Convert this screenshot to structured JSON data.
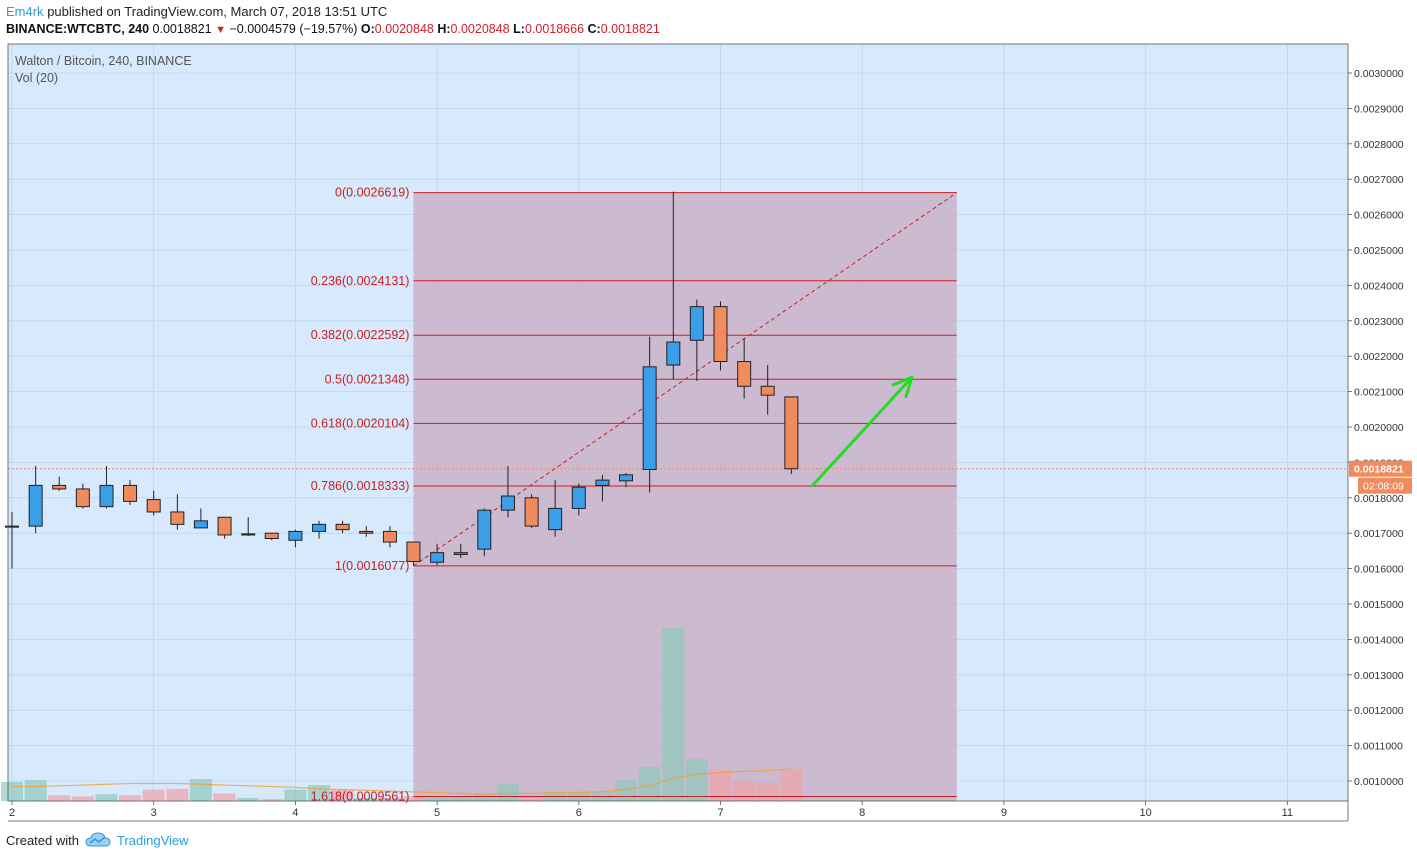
{
  "header": {
    "author": "Em4rk",
    "published_text": "published on TradingView.com, March 07, 2018 13:51 UTC",
    "symbol": "BINANCE:WTCBTC, 240",
    "last": "0.0018821",
    "change": "−0.0004579 (−19.57%)",
    "o_label": "O:",
    "o_val": "0.0020848",
    "h_label": "H:",
    "h_val": "0.0020848",
    "l_label": "L:",
    "l_val": "0.0018666",
    "c_label": "C:",
    "c_val": "0.0018821"
  },
  "legend": {
    "title": "Walton / Bitcoin, 240, BINANCE",
    "vol": "Vol (20)"
  },
  "footer": {
    "created_with": "Created with",
    "brand": "TradingView"
  },
  "colors": {
    "bg": "#d6e9fd",
    "up": "#3a9ee8",
    "down": "#ef8b5c",
    "fib_line": "#cc1f1f",
    "fib_zone": "#c8aac0",
    "arrow": "#22dd22",
    "price_tag": "#ef8b5c"
  },
  "chart_data": {
    "type": "candlestick",
    "price_range": [
      0.00091,
      0.00312
    ],
    "y_ticks": [
      "0.0030000",
      "0.0029000",
      "0.0028000",
      "0.0027000",
      "0.0026000",
      "0.0025000",
      "0.0024000",
      "0.0023000",
      "0.0022000",
      "0.0021000",
      "0.0020000",
      "0.0019000",
      "0.0018000",
      "0.0017000",
      "0.0016000",
      "0.0015000",
      "0.0014000",
      "0.0013000",
      "0.0012000",
      "0.0011000",
      "0.0010000"
    ],
    "x_ticks": [
      "2",
      "3",
      "4",
      "5",
      "6",
      "7",
      "8",
      "9",
      "10",
      "11"
    ],
    "x_tick_values": [
      2,
      3,
      4,
      5,
      6,
      7,
      8,
      9,
      10,
      11
    ],
    "x_range": [
      1.97,
      11.45
    ],
    "candles": [
      {
        "t": 2.0,
        "o": 0.00172,
        "h": 0.00176,
        "l": 0.0016,
        "c": 0.00172
      },
      {
        "t": 2.167,
        "o": 0.00172,
        "h": 0.00189,
        "l": 0.0017,
        "c": 0.001835
      },
      {
        "t": 2.333,
        "o": 0.001835,
        "h": 0.00186,
        "l": 0.00182,
        "c": 0.001825
      },
      {
        "t": 2.5,
        "o": 0.001825,
        "h": 0.00184,
        "l": 0.00177,
        "c": 0.001775
      },
      {
        "t": 2.667,
        "o": 0.001775,
        "h": 0.00189,
        "l": 0.00177,
        "c": 0.001835
      },
      {
        "t": 2.833,
        "o": 0.001835,
        "h": 0.00185,
        "l": 0.00178,
        "c": 0.00179
      },
      {
        "t": 3.0,
        "o": 0.001795,
        "h": 0.00182,
        "l": 0.00175,
        "c": 0.00176
      },
      {
        "t": 3.167,
        "o": 0.00176,
        "h": 0.00181,
        "l": 0.00171,
        "c": 0.001725
      },
      {
        "t": 3.333,
        "o": 0.001715,
        "h": 0.00177,
        "l": 0.001715,
        "c": 0.001735
      },
      {
        "t": 3.5,
        "o": 0.001745,
        "h": 0.001745,
        "l": 0.001685,
        "c": 0.001695
      },
      {
        "t": 3.667,
        "o": 0.001698,
        "h": 0.001745,
        "l": 0.001692,
        "c": 0.001695
      },
      {
        "t": 3.833,
        "o": 0.0017,
        "h": 0.0017,
        "l": 0.00168,
        "c": 0.001685
      },
      {
        "t": 4.0,
        "o": 0.00168,
        "h": 0.00171,
        "l": 0.00166,
        "c": 0.001705
      },
      {
        "t": 4.167,
        "o": 0.001705,
        "h": 0.001735,
        "l": 0.001685,
        "c": 0.001725
      },
      {
        "t": 4.333,
        "o": 0.001725,
        "h": 0.001735,
        "l": 0.0017,
        "c": 0.00171
      },
      {
        "t": 4.5,
        "o": 0.001705,
        "h": 0.00172,
        "l": 0.00169,
        "c": 0.0017
      },
      {
        "t": 4.667,
        "o": 0.001705,
        "h": 0.00172,
        "l": 0.00166,
        "c": 0.001675
      },
      {
        "t": 4.833,
        "o": 0.001675,
        "h": 0.001675,
        "l": 0.001608,
        "c": 0.00162
      },
      {
        "t": 5.0,
        "o": 0.001618,
        "h": 0.00167,
        "l": 0.00161,
        "c": 0.001645
      },
      {
        "t": 5.167,
        "o": 0.00164,
        "h": 0.00167,
        "l": 0.00163,
        "c": 0.001645
      },
      {
        "t": 5.333,
        "o": 0.001655,
        "h": 0.00177,
        "l": 0.001635,
        "c": 0.001765
      },
      {
        "t": 5.5,
        "o": 0.001765,
        "h": 0.00189,
        "l": 0.001745,
        "c": 0.001805
      },
      {
        "t": 5.667,
        "o": 0.0018,
        "h": 0.00181,
        "l": 0.001715,
        "c": 0.00172
      },
      {
        "t": 5.833,
        "o": 0.00171,
        "h": 0.00185,
        "l": 0.00169,
        "c": 0.00177
      },
      {
        "t": 6.0,
        "o": 0.00177,
        "h": 0.00184,
        "l": 0.00175,
        "c": 0.00183
      },
      {
        "t": 6.167,
        "o": 0.001835,
        "h": 0.001865,
        "l": 0.00179,
        "c": 0.00185
      },
      {
        "t": 6.333,
        "o": 0.001848,
        "h": 0.00187,
        "l": 0.00183,
        "c": 0.001865
      },
      {
        "t": 6.5,
        "o": 0.00188,
        "h": 0.002255,
        "l": 0.001815,
        "c": 0.00217
      },
      {
        "t": 6.667,
        "o": 0.002175,
        "h": 0.002665,
        "l": 0.002135,
        "c": 0.00224
      },
      {
        "t": 6.833,
        "o": 0.002245,
        "h": 0.00236,
        "l": 0.00213,
        "c": 0.00234
      },
      {
        "t": 7.0,
        "o": 0.00234,
        "h": 0.002355,
        "l": 0.00216,
        "c": 0.002185
      },
      {
        "t": 7.167,
        "o": 0.002185,
        "h": 0.00225,
        "l": 0.00208,
        "c": 0.002115
      },
      {
        "t": 7.333,
        "o": 0.002115,
        "h": 0.002175,
        "l": 0.002035,
        "c": 0.00209
      },
      {
        "t": 7.5,
        "o": 0.002085,
        "h": 0.002085,
        "l": 0.001867,
        "c": 0.001882
      }
    ],
    "volume": [
      {
        "t": 2.0,
        "v": 0.5,
        "up": true
      },
      {
        "t": 2.167,
        "v": 0.55,
        "up": true
      },
      {
        "t": 2.333,
        "v": 0.15,
        "up": false
      },
      {
        "t": 2.5,
        "v": 0.12,
        "up": false
      },
      {
        "t": 2.667,
        "v": 0.18,
        "up": true
      },
      {
        "t": 2.833,
        "v": 0.15,
        "up": false
      },
      {
        "t": 3.0,
        "v": 0.3,
        "up": false
      },
      {
        "t": 3.167,
        "v": 0.32,
        "up": false
      },
      {
        "t": 3.333,
        "v": 0.58,
        "up": true
      },
      {
        "t": 3.5,
        "v": 0.2,
        "up": false
      },
      {
        "t": 3.667,
        "v": 0.08,
        "up": true
      },
      {
        "t": 3.833,
        "v": 0.05,
        "up": false
      },
      {
        "t": 4.0,
        "v": 0.3,
        "up": true
      },
      {
        "t": 4.167,
        "v": 0.42,
        "up": true
      },
      {
        "t": 4.333,
        "v": 0.3,
        "up": false
      },
      {
        "t": 4.5,
        "v": 0.08,
        "up": true
      },
      {
        "t": 4.667,
        "v": 0.08,
        "up": false
      },
      {
        "t": 4.833,
        "v": 0.12,
        "up": false
      },
      {
        "t": 5.0,
        "v": 0.08,
        "up": true
      },
      {
        "t": 5.167,
        "v": 0.1,
        "up": true
      },
      {
        "t": 5.333,
        "v": 0.2,
        "up": true
      },
      {
        "t": 5.5,
        "v": 0.45,
        "up": true
      },
      {
        "t": 5.667,
        "v": 0.15,
        "up": false
      },
      {
        "t": 5.833,
        "v": 0.25,
        "up": true
      },
      {
        "t": 6.0,
        "v": 0.25,
        "up": true
      },
      {
        "t": 6.167,
        "v": 0.25,
        "up": true
      },
      {
        "t": 6.333,
        "v": 0.55,
        "up": true
      },
      {
        "t": 6.5,
        "v": 0.9,
        "up": true
      },
      {
        "t": 6.667,
        "v": 4.55,
        "up": true
      },
      {
        "t": 6.833,
        "v": 1.1,
        "up": true
      },
      {
        "t": 7.0,
        "v": 0.83,
        "up": false
      },
      {
        "t": 7.167,
        "v": 0.52,
        "up": false
      },
      {
        "t": 7.333,
        "v": 0.48,
        "up": false
      },
      {
        "t": 7.5,
        "v": 0.83,
        "up": false
      }
    ],
    "volume_ma": [
      0.38,
      0.38,
      0.4,
      0.42,
      0.44,
      0.46,
      0.46,
      0.46,
      0.44,
      0.42,
      0.4,
      0.38,
      0.36,
      0.32,
      0.3,
      0.28,
      0.26,
      0.24,
      0.22,
      0.2,
      0.18,
      0.2,
      0.2,
      0.22,
      0.22,
      0.25,
      0.3,
      0.4,
      0.6,
      0.7,
      0.75,
      0.78,
      0.8,
      0.84
    ],
    "volume_max": 5.0,
    "fibonacci": {
      "x_start": 4.833,
      "x_end": 8.667,
      "levels": [
        {
          "ratio": "0",
          "price": 0.0026619,
          "label": "0(0.0026619)"
        },
        {
          "ratio": "0.236",
          "price": 0.0024131,
          "label": "0.236(0.0024131)"
        },
        {
          "ratio": "0.382",
          "price": 0.0022592,
          "label": "0.382(0.0022592)"
        },
        {
          "ratio": "0.5",
          "price": 0.0021348,
          "label": "0.5(0.0021348)"
        },
        {
          "ratio": "0.618",
          "price": 0.0020104,
          "label": "0.618(0.0020104)"
        },
        {
          "ratio": "0.786",
          "price": 0.0018333,
          "label": "0.786(0.0018333)"
        },
        {
          "ratio": "1",
          "price": 0.0016077,
          "label": "1(0.0016077)"
        },
        {
          "ratio": "1.618",
          "price": 0.0009561,
          "label": "1.618(0.0009561)"
        }
      ]
    },
    "trend_line": {
      "x1": 4.833,
      "y1": 0.0016077,
      "x2": 8.667,
      "y2": 0.0026619
    },
    "arrow": {
      "x1": 7.65,
      "y1": 0.001835,
      "x2": 8.35,
      "y2": 0.00214
    },
    "last_price": {
      "value": "0.0018821",
      "price": 0.0018821
    },
    "countdown": "02:08:09"
  }
}
